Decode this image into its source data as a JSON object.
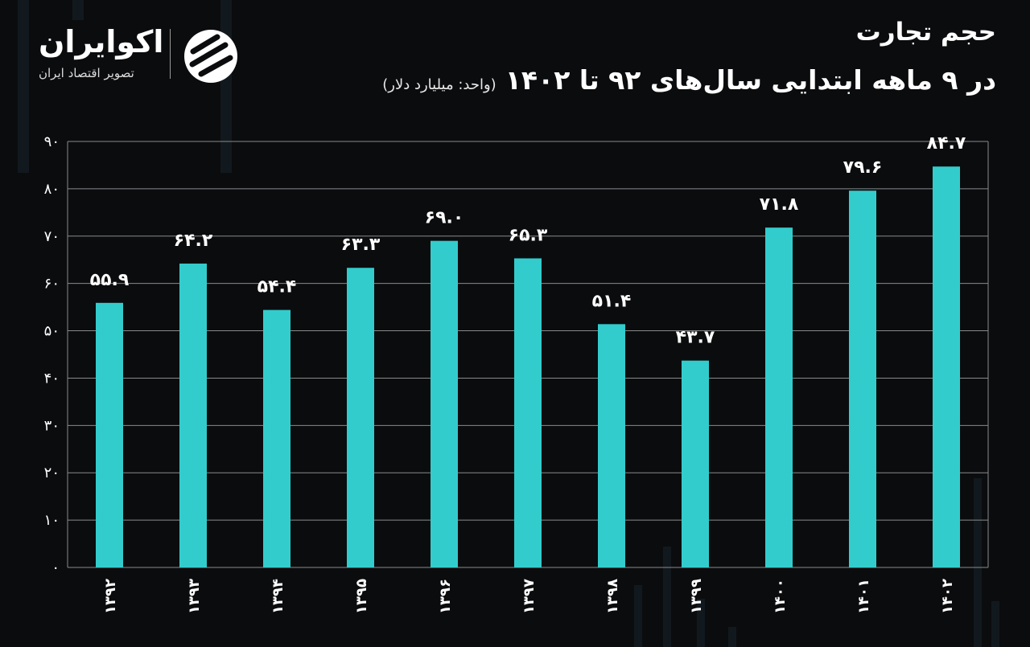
{
  "header": {
    "title": "حجم تجارت",
    "subtitle": "در ۹ ماهه ابتدایی سال‌های ۹۲ تا ۱۴۰۲",
    "unit_note": "(واحد: میلیارد دلار)"
  },
  "logo": {
    "name": "اکوایران",
    "tagline": "تصویر اقتصاد ایران",
    "mark_icon": "ecoiran-logo-icon"
  },
  "colors": {
    "background": "#0b0c0e",
    "bar": "#33cccc",
    "grid": "#8a8a8a",
    "text": "#ffffff"
  },
  "chart_data": {
    "type": "bar",
    "title": "حجم تجارت",
    "subtitle": "در ۹ ماهه ابتدایی سال‌های ۹۲ تا ۱۴۰۲",
    "xlabel": "",
    "ylabel": "",
    "categories": [
      "۱۳۹۲",
      "۱۳۹۳",
      "۱۳۹۴",
      "۱۳۹۵",
      "۱۳۹۶",
      "۱۳۹۷",
      "۱۳۹۸",
      "۱۳۹۹",
      "۱۴۰۰",
      "۱۴۰۱",
      "۱۴۰۲"
    ],
    "values": [
      55.9,
      64.2,
      54.4,
      63.3,
      69.0,
      65.3,
      51.4,
      43.7,
      71.8,
      79.6,
      84.7
    ],
    "value_labels": [
      "۵۵.۹",
      "۶۴.۲",
      "۵۴.۴",
      "۶۳.۳",
      "۶۹.۰",
      "۶۵.۳",
      "۵۱.۴",
      "۴۳.۷",
      "۷۱.۸",
      "۷۹.۶",
      "۸۴.۷"
    ],
    "ylim": [
      0,
      90
    ],
    "yticks": [
      0,
      10,
      20,
      30,
      40,
      50,
      60,
      70,
      80,
      90
    ],
    "ytick_labels": [
      "۰",
      "۱۰",
      "۲۰",
      "۳۰",
      "۴۰",
      "۵۰",
      "۶۰",
      "۷۰",
      "۸۰",
      "۹۰"
    ],
    "grid": true,
    "legend": "none"
  }
}
